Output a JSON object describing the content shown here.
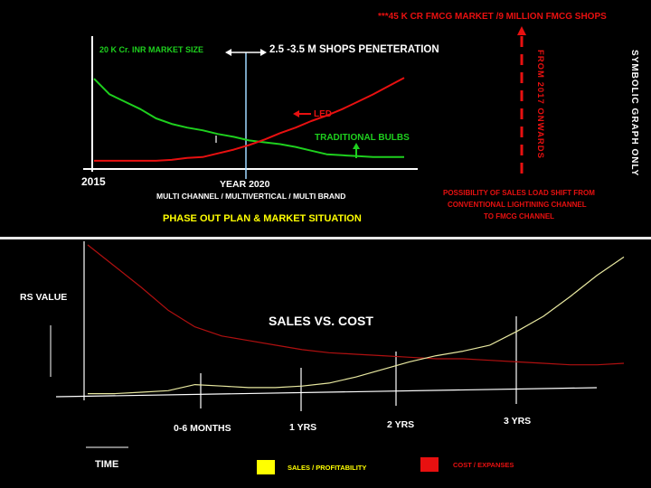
{
  "top": {
    "header_note": "***45 K CR FMCG MARKET /9 MILLION FMCG SHOPS",
    "market_size": "20 K Cr. INR MARKET SIZE",
    "penetration": "2.5 -3.5 M SHOPS PENETERATION",
    "from_2017": "FROM 2017 ONWARDS",
    "symbolic": "SYMBOLIC GRAPH ONLY",
    "led_label": "LED",
    "traditional_label": "TRADITIONAL BULBS",
    "year_start": "2015",
    "year_2020": "YEAR 2020",
    "channel_note": "MULTI CHANNEL / MULTIVERTICAL / MULTI BRAND",
    "phase_out": "PHASE OUT PLAN & MARKET SITUATION",
    "shift_line1": "POSSIBILITY OF SALES LOAD SHIFT FROM",
    "shift_line2": "CONVENTIONAL  LIGHTINING CHANNEL",
    "shift_line3": "TO FMCG CHANNEL"
  },
  "bottom": {
    "y_label": "RS VALUE",
    "x_label": "TIME",
    "title": "SALES VS. COST",
    "milestones": [
      "0-6 MONTHS",
      "1 YRS",
      "2 YRS",
      "3 YRS"
    ],
    "legend_sales": "SALES / PROFITABILITY",
    "legend_cost": "COST /  EXPANSES"
  },
  "colors": {
    "red": "#e81010",
    "green": "#1ed01e",
    "yellow": "#ffff00",
    "white": "#ffffff",
    "blue_line": "#9fd8ff",
    "cost_line": "#b01010",
    "sales_line": "#e8e8a0"
  },
  "chart_data": [
    {
      "type": "line",
      "title": "PHASE OUT PLAN & MARKET SITUATION",
      "x_start_label": "2015",
      "x_mark_label": "YEAR 2020",
      "x": [
        0,
        0.05,
        0.1,
        0.15,
        0.2,
        0.25,
        0.3,
        0.35,
        0.4,
        0.45,
        0.5,
        0.55,
        0.6,
        0.65,
        0.7,
        0.75,
        0.8,
        0.85,
        0.9,
        0.95,
        1.0
      ],
      "series": [
        {
          "name": "TRADITIONAL BULBS",
          "color": "#1ed01e",
          "values": [
            0.95,
            0.78,
            0.7,
            0.62,
            0.52,
            0.46,
            0.42,
            0.39,
            0.35,
            0.32,
            0.28,
            0.26,
            0.24,
            0.21,
            0.17,
            0.13,
            0.12,
            0.11,
            0.1,
            0.1,
            0.1
          ]
        },
        {
          "name": "LED",
          "color": "#e81010",
          "values": [
            0.06,
            0.06,
            0.06,
            0.06,
            0.06,
            0.07,
            0.09,
            0.1,
            0.14,
            0.18,
            0.23,
            0.29,
            0.36,
            0.42,
            0.49,
            0.55,
            0.62,
            0.7,
            0.78,
            0.87,
            0.96
          ]
        }
      ],
      "notes": "SYMBOLIC GRAPH ONLY"
    },
    {
      "type": "line",
      "title": "SALES VS. COST",
      "xlabel": "TIME",
      "ylabel": "RS VALUE",
      "milestones": [
        "0-6 MONTHS",
        "1 YRS",
        "2 YRS",
        "3 YRS"
      ],
      "x": [
        0,
        0.05,
        0.1,
        0.15,
        0.2,
        0.25,
        0.3,
        0.35,
        0.4,
        0.45,
        0.5,
        0.55,
        0.6,
        0.65,
        0.7,
        0.75,
        0.8,
        0.85,
        0.9,
        0.95,
        1.0
      ],
      "series": [
        {
          "name": "COST /  EXPANSES",
          "color": "#b01010",
          "values": [
            1.0,
            0.86,
            0.72,
            0.57,
            0.46,
            0.4,
            0.37,
            0.34,
            0.31,
            0.29,
            0.28,
            0.27,
            0.26,
            0.25,
            0.25,
            0.24,
            0.23,
            0.22,
            0.21,
            0.21,
            0.22
          ]
        },
        {
          "name": "SALES / PROFITABILITY",
          "color": "#e8e8a0",
          "values": [
            0.02,
            0.02,
            0.03,
            0.04,
            0.08,
            0.07,
            0.06,
            0.06,
            0.07,
            0.09,
            0.13,
            0.18,
            0.23,
            0.27,
            0.3,
            0.34,
            0.43,
            0.53,
            0.66,
            0.8,
            0.92
          ]
        }
      ]
    }
  ]
}
